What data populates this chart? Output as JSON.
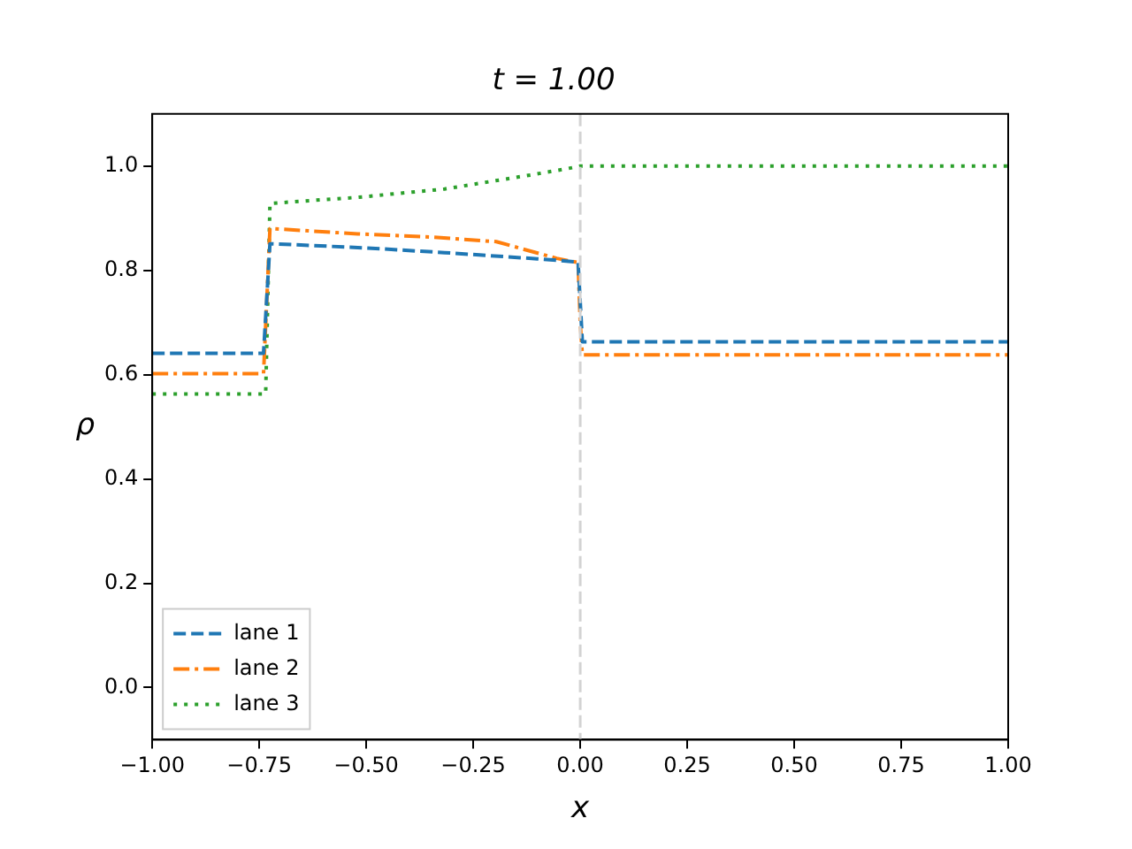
{
  "chart_data": {
    "type": "line",
    "title": "t = 1.00",
    "xlabel": "x",
    "ylabel": "ρ",
    "series": [
      {
        "name": "lane 1",
        "color": "#1f77b4",
        "line_style": "dashed",
        "x": [
          -1,
          -0.74,
          -0.725,
          -0.72,
          -0.5,
          -0.317,
          -0.1,
          -0.005,
          0,
          0.005,
          1
        ],
        "values": [
          0.641,
          0.641,
          0.851,
          0.851,
          0.843,
          0.834,
          0.822,
          0.816,
          0.74,
          0.663,
          0.663
        ]
      },
      {
        "name": "lane 2",
        "color": "#ff7f0e",
        "line_style": "dashdot",
        "x": [
          -1,
          -0.74,
          -0.725,
          -0.72,
          -0.52,
          -0.35,
          -0.196,
          -0.055,
          -0.005,
          0,
          0.005,
          1
        ],
        "values": [
          0.602,
          0.602,
          0.88,
          0.88,
          0.87,
          0.864,
          0.855,
          0.823,
          0.815,
          0.7,
          0.638,
          0.638
        ]
      },
      {
        "name": "lane 3",
        "color": "#2ca02c",
        "line_style": "dotted",
        "x": [
          -1,
          -0.735,
          -0.725,
          -0.68,
          -0.52,
          -0.317,
          -0.115,
          -0.03,
          0,
          1
        ],
        "values": [
          0.563,
          0.563,
          0.928,
          0.931,
          0.94,
          0.956,
          0.983,
          0.995,
          1.0,
          1.0
        ]
      }
    ],
    "xlim": [
      -1,
      1
    ],
    "ylim": [
      -0.1,
      1.1
    ],
    "xticks": [
      {
        "value": -1,
        "label": "−1.00"
      },
      {
        "value": -0.75,
        "label": "−0.75"
      },
      {
        "value": -0.5,
        "label": "−0.50"
      },
      {
        "value": -0.25,
        "label": "−0.25"
      },
      {
        "value": 0,
        "label": "0.00"
      },
      {
        "value": 0.25,
        "label": "0.25"
      },
      {
        "value": 0.5,
        "label": "0.50"
      },
      {
        "value": 0.75,
        "label": "0.75"
      },
      {
        "value": 1,
        "label": "1.00"
      }
    ],
    "yticks": [
      {
        "value": 0,
        "label": "0.0"
      },
      {
        "value": 0.2,
        "label": "0.2"
      },
      {
        "value": 0.4,
        "label": "0.4"
      },
      {
        "value": 0.6,
        "label": "0.6"
      },
      {
        "value": 0.8,
        "label": "0.8"
      },
      {
        "value": 1,
        "label": "1.0"
      }
    ],
    "ref_lines": [
      {
        "axis": "x",
        "value": 0,
        "color": "#d3d3d3",
        "line_style": "dashed"
      }
    ],
    "legend": "bottom left",
    "grid": false,
    "marker": "none"
  }
}
